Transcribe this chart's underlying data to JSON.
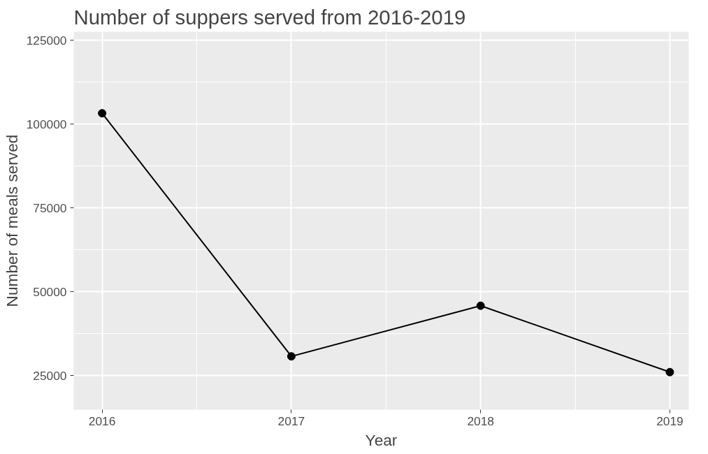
{
  "chart_data": {
    "type": "line",
    "title": "Number of suppers served from 2016-2019",
    "xlabel": "Year",
    "ylabel": "Number of meals served",
    "x": [
      2016,
      2017,
      2018,
      2019
    ],
    "series": [
      {
        "color": "#000000",
        "values": [
          103200,
          30700,
          45800,
          26000
        ]
      }
    ],
    "xlim": [
      2015.85,
      2019.1
    ],
    "xticks": [
      2016,
      2017,
      2018,
      2019
    ],
    "ylim": [
      14800,
      127500
    ],
    "yticks": [
      25000,
      50000,
      75000,
      100000,
      125000
    ],
    "grid": true,
    "marker": "circle",
    "line_style": "solid"
  }
}
